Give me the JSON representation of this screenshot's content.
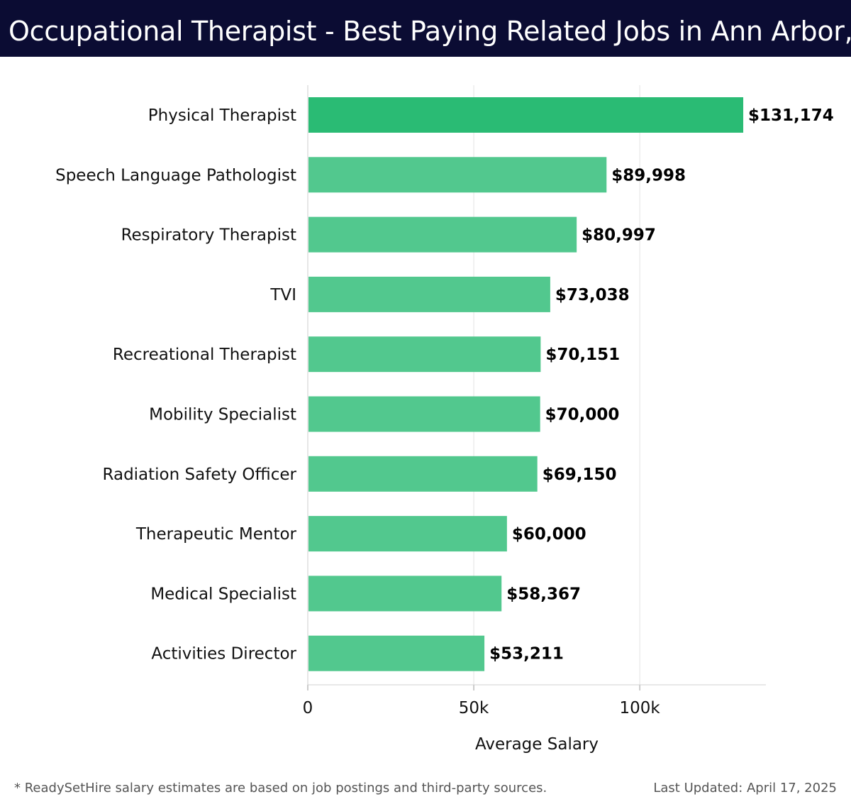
{
  "header": {
    "title": "Occupational Therapist - Best Paying Related Jobs in Ann Arbor, MI"
  },
  "chart_data": {
    "type": "bar",
    "orientation": "horizontal",
    "categories": [
      "Physical Therapist",
      "Speech Language Pathologist",
      "Respiratory Therapist",
      "TVI",
      "Recreational Therapist",
      "Mobility Specialist",
      "Radiation Safety Officer",
      "Therapeutic Mentor",
      "Medical Specialist",
      "Activities Director"
    ],
    "values": [
      131174,
      89998,
      80997,
      73038,
      70151,
      70000,
      69150,
      60000,
      58367,
      53211
    ],
    "value_labels": [
      "$131,174",
      "$89,998",
      "$80,997",
      "$73,038",
      "$70,151",
      "$70,000",
      "$69,150",
      "$60,000",
      "$58,367",
      "$53,211"
    ],
    "xlabel": "Average Salary",
    "ylabel": "",
    "xlim": [
      0,
      138000
    ],
    "xticks": [
      0,
      50000,
      100000
    ],
    "xtick_labels": [
      "0",
      "50k",
      "100k"
    ],
    "grid": "vertical",
    "colors": {
      "top_bar": "#2abb74",
      "bars": "#52c88e",
      "grid": "#e3e3e3",
      "header_bg": "#0b0c33"
    }
  },
  "footer": {
    "note": "* ReadySetHire salary estimates are based on job postings and third-party sources.",
    "updated": "Last Updated: April 17, 2025"
  }
}
